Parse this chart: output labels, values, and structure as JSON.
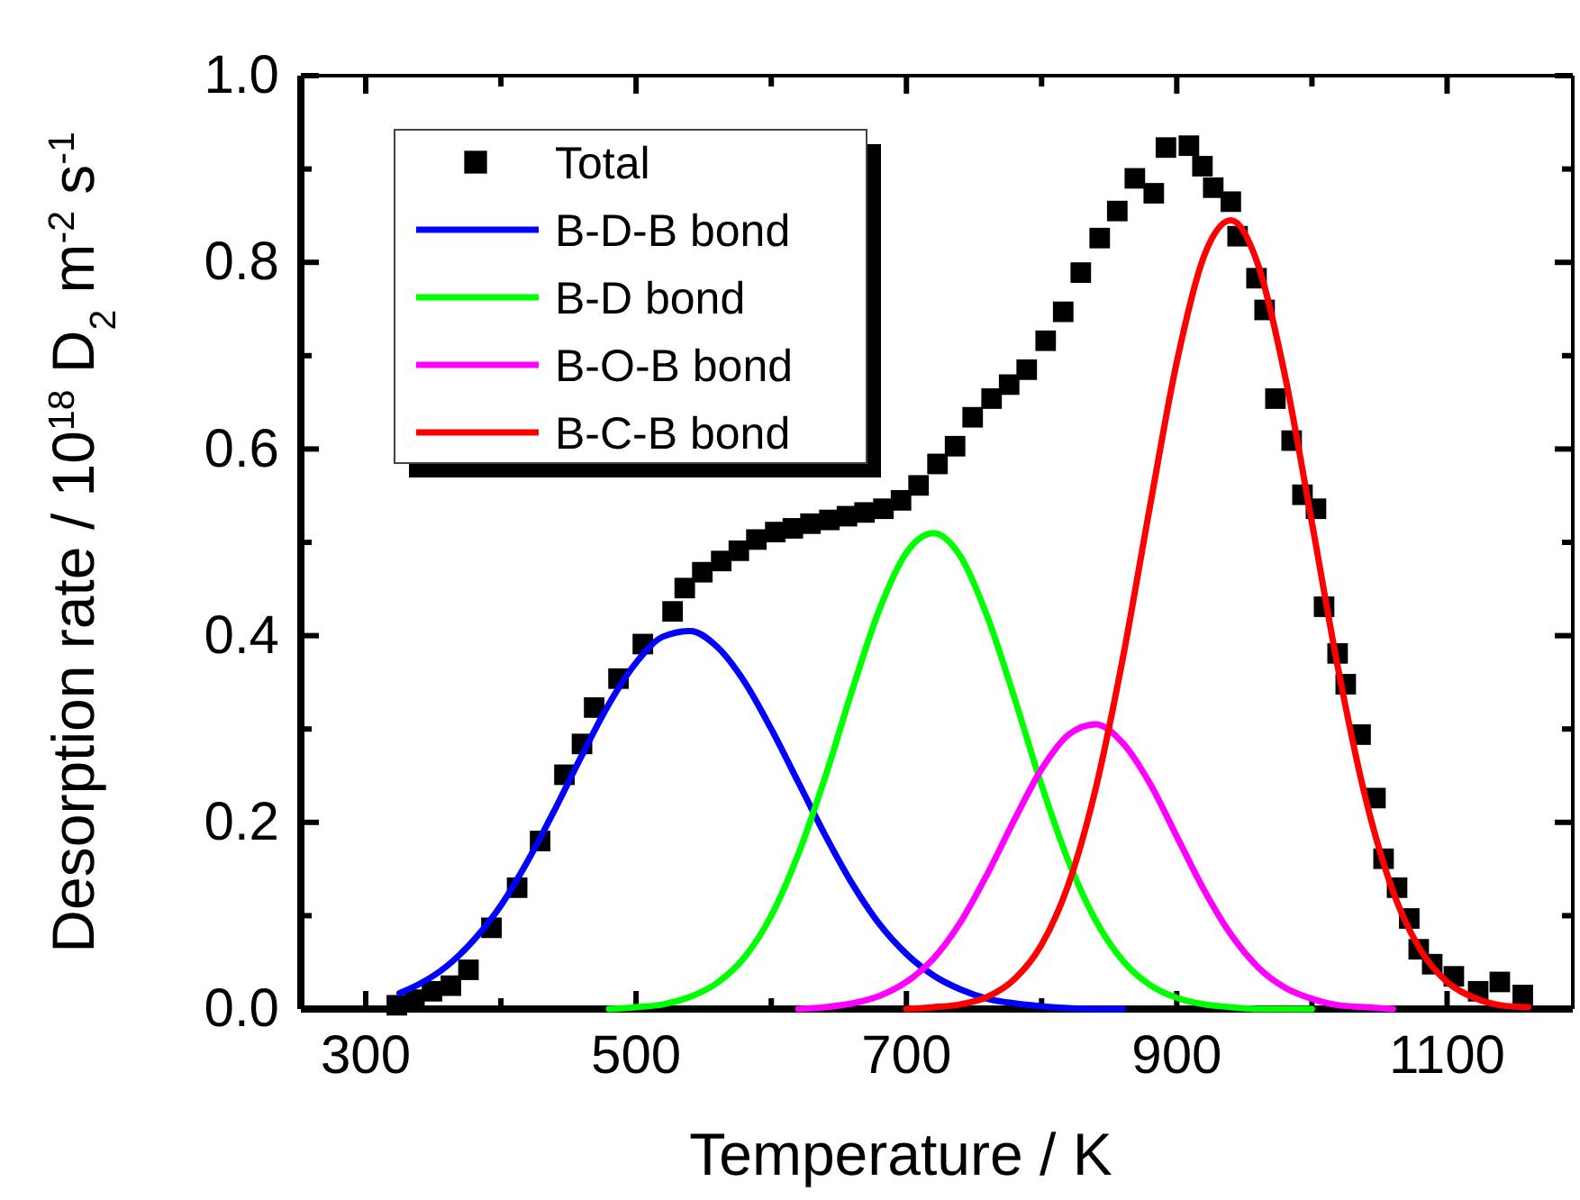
{
  "chart_data": {
    "type": "line",
    "xlabel": "Temperature / K",
    "ylabel": "Desorption rate / 10$^{18}$ D$_{2}$ m$^{-2}$ s$^{-1}$",
    "xlim": [
      252,
      1193
    ],
    "ylim": [
      0,
      1.0
    ],
    "xticks": [
      300,
      {
        "value": 400,
        "label": null
      },
      500,
      {
        "value": 600,
        "label": null
      },
      700,
      {
        "value": 800,
        "label": null
      },
      900,
      {
        "value": 1000,
        "label": null
      },
      1100
    ],
    "yticks": [
      {
        "value": 0,
        "label": "0.0"
      },
      {
        "value": 0.1,
        "label": null
      },
      {
        "value": 0.2,
        "label": "0.2"
      },
      {
        "value": 0.3,
        "label": null
      },
      {
        "value": 0.4,
        "label": "0.4"
      },
      {
        "value": 0.5,
        "label": null
      },
      {
        "value": 0.6,
        "label": "0.6"
      },
      {
        "value": 0.7,
        "label": null
      },
      {
        "value": 0.8,
        "label": "0.8"
      },
      {
        "value": 0.9,
        "label": null
      },
      {
        "value": 1.0,
        "label": "1.0"
      }
    ],
    "grid": false,
    "legend": "top left",
    "series": [
      {
        "name": "Total",
        "type": "scatter",
        "marker": "square",
        "color": "#000000",
        "x": [
          323,
          336,
          349,
          363,
          376,
          393,
          412,
          429,
          447,
          460,
          469,
          487,
          505,
          527,
          536,
          549,
          563,
          576,
          589,
          603,
          616,
          629,
          643,
          656,
          669,
          683,
          696,
          709,
          723,
          736,
          749,
          763,
          776,
          789,
          803,
          816,
          829,
          843,
          856,
          869,
          883,
          892,
          909,
          919,
          927,
          940,
          945,
          959,
          965,
          973,
          985,
          993,
          1003,
          1009,
          1019,
          1025,
          1036,
          1047,
          1053,
          1063,
          1072,
          1079,
          1089,
          1105,
          1123,
          1139,
          1156
        ],
        "values": [
          0.004,
          0.01,
          0.019,
          0.025,
          0.042,
          0.087,
          0.13,
          0.18,
          0.251,
          0.284,
          0.323,
          0.354,
          0.391,
          0.426,
          0.451,
          0.468,
          0.48,
          0.491,
          0.503,
          0.511,
          0.515,
          0.52,
          0.524,
          0.528,
          0.532,
          0.536,
          0.545,
          0.561,
          0.584,
          0.603,
          0.634,
          0.654,
          0.669,
          0.685,
          0.716,
          0.747,
          0.789,
          0.826,
          0.855,
          0.89,
          0.874,
          0.923,
          0.925,
          0.903,
          0.88,
          0.865,
          0.828,
          0.783,
          0.749,
          0.654,
          0.609,
          0.551,
          0.536,
          0.431,
          0.381,
          0.348,
          0.294,
          0.226,
          0.161,
          0.13,
          0.097,
          0.064,
          0.048,
          0.035,
          0.019,
          0.029,
          0.015
        ]
      },
      {
        "name": "B-D-B bond",
        "color": "#0000ff",
        "x": [
          325,
          340,
          360,
          380,
          400,
          420,
          440,
          460,
          480,
          500,
          520,
          540,
          560,
          580,
          600,
          620,
          640,
          660,
          680,
          700,
          720,
          740,
          760,
          780,
          800,
          820,
          840,
          860
        ],
        "values": [
          0.017,
          0.027,
          0.046,
          0.074,
          0.111,
          0.159,
          0.214,
          0.272,
          0.327,
          0.371,
          0.399,
          0.405,
          0.388,
          0.351,
          0.3,
          0.243,
          0.186,
          0.134,
          0.091,
          0.059,
          0.036,
          0.021,
          0.011,
          0.006,
          0.003,
          0.001,
          0,
          0
        ]
      },
      {
        "name": "B-D bond",
        "color": "#00ff00",
        "x": [
          480,
          500,
          520,
          540,
          560,
          580,
          600,
          620,
          640,
          660,
          680,
          700,
          720,
          740,
          760,
          780,
          800,
          820,
          840,
          860,
          880,
          900,
          920,
          940,
          960,
          980,
          1000
        ],
        "values": [
          0,
          0.002,
          0.005,
          0.013,
          0.028,
          0.055,
          0.1,
          0.166,
          0.249,
          0.342,
          0.428,
          0.489,
          0.51,
          0.485,
          0.42,
          0.333,
          0.24,
          0.158,
          0.095,
          0.052,
          0.026,
          0.012,
          0.005,
          0.002,
          0,
          0,
          0
        ]
      },
      {
        "name": "B-O-B bond",
        "color": "#ff00ff",
        "x": [
          620,
          640,
          660,
          680,
          700,
          720,
          740,
          760,
          780,
          800,
          820,
          840,
          860,
          880,
          900,
          920,
          940,
          960,
          980,
          1000,
          1020,
          1040,
          1060
        ],
        "values": [
          0,
          0.002,
          0.006,
          0.014,
          0.029,
          0.054,
          0.093,
          0.145,
          0.203,
          0.257,
          0.294,
          0.305,
          0.285,
          0.242,
          0.185,
          0.128,
          0.08,
          0.045,
          0.023,
          0.011,
          0.004,
          0.002,
          0
        ]
      },
      {
        "name": "B-C-B bond",
        "color": "#ff0000",
        "x": [
          700,
          720,
          740,
          760,
          780,
          800,
          820,
          840,
          860,
          880,
          900,
          920,
          940,
          960,
          980,
          1000,
          1020,
          1040,
          1060,
          1080,
          1100,
          1120,
          1140,
          1160
        ],
        "values": [
          0,
          0.002,
          0.005,
          0.013,
          0.032,
          0.069,
          0.134,
          0.236,
          0.375,
          0.537,
          0.693,
          0.806,
          0.845,
          0.798,
          0.679,
          0.521,
          0.36,
          0.224,
          0.126,
          0.064,
          0.029,
          0.012,
          0.004,
          0.002
        ]
      }
    ]
  }
}
